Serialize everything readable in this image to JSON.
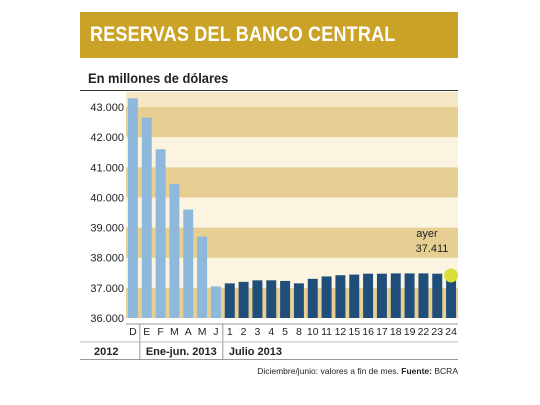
{
  "title": "RESERVAS DEL BANCO CENTRAL",
  "subtitle": "En millones de dólares",
  "footer": {
    "note": "Diciembre/junio: valores a fin de mes.",
    "source_label": "Fuente:",
    "source": "BCRA"
  },
  "annotation": {
    "label": "ayer",
    "value": "37.411"
  },
  "colors": {
    "title_bg": "#c9a227",
    "bar_history": "#8eb8dc",
    "bar_july": "#1f4e7a",
    "highlight_dot": "#d9e03a",
    "band_light": "#f5e8c4",
    "band_dark": "#e7cf93"
  },
  "chart_data": {
    "type": "bar",
    "title": "RESERVAS DEL BANCO CENTRAL",
    "ylabel": "En millones de dólares",
    "ylim": [
      36000,
      43500
    ],
    "yticks": [
      36000,
      37000,
      38000,
      39000,
      40000,
      41000,
      42000,
      43000
    ],
    "ytick_labels": [
      "36.000",
      "37.000",
      "38.000",
      "39.000",
      "40.000",
      "41.000",
      "42.000",
      "43.000"
    ],
    "categories": [
      "D",
      "E",
      "F",
      "M",
      "A",
      "M",
      "J",
      "1",
      "2",
      "3",
      "4",
      "5",
      "8",
      "10",
      "11",
      "12",
      "15",
      "16",
      "17",
      "18",
      "19",
      "22",
      "23",
      "24"
    ],
    "values": [
      43290,
      42650,
      41600,
      40450,
      39600,
      38700,
      37050,
      37150,
      37200,
      37250,
      37250,
      37230,
      37150,
      37300,
      37380,
      37420,
      37440,
      37470,
      37470,
      37480,
      37480,
      37480,
      37470,
      37411
    ],
    "groups": [
      {
        "label": "2012",
        "start": 0,
        "end": 0
      },
      {
        "label": "Ene-jun. 2013",
        "start": 1,
        "end": 6
      },
      {
        "label": "Julio 2013",
        "start": 7,
        "end": 23
      }
    ],
    "highlight_index": 23
  }
}
